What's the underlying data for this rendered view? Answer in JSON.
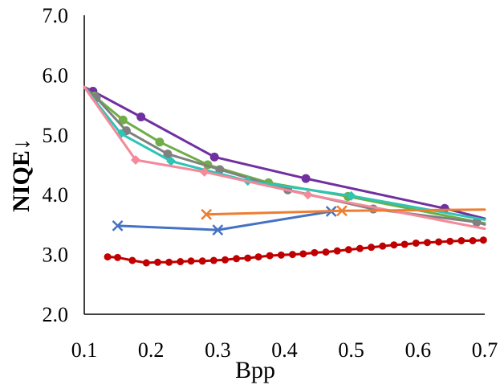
{
  "chart_data": {
    "type": "line",
    "title": "",
    "xlabel": "Bpp",
    "ylabel": "NIQE↓",
    "xlim": [
      0.1,
      0.7
    ],
    "ylim": [
      2.0,
      7.0
    ],
    "x_ticks": [
      "0.1",
      "0.2",
      "0.3",
      "0.4",
      "0.5",
      "0.6",
      "0.7"
    ],
    "y_ticks": [
      "2.0",
      "3.0",
      "4.0",
      "5.0",
      "6.0",
      "7.0"
    ],
    "grid": false,
    "legend": "none",
    "series": [
      {
        "name": "purple",
        "color": "#7030a0",
        "marker": "circle",
        "x": [
          0.1,
          0.113,
          0.185,
          0.295,
          0.432,
          0.64,
          0.7
        ],
        "y": [
          5.8,
          5.73,
          5.3,
          4.63,
          4.27,
          3.77,
          3.6
        ]
      },
      {
        "name": "green",
        "color": "#70ad47",
        "marker": "circle",
        "x": [
          0.1,
          0.115,
          0.158,
          0.213,
          0.285,
          0.376,
          0.495,
          0.7
        ],
        "y": [
          5.8,
          5.65,
          5.25,
          4.88,
          4.5,
          4.2,
          3.97,
          3.52
        ]
      },
      {
        "name": "gray",
        "color": "#808080",
        "marker": "circle",
        "x": [
          0.1,
          0.118,
          0.163,
          0.225,
          0.303,
          0.405,
          0.533,
          0.688,
          0.7
        ],
        "y": [
          5.8,
          5.62,
          5.07,
          4.68,
          4.42,
          4.08,
          3.76,
          3.54,
          3.5
        ]
      },
      {
        "name": "teal",
        "color": "#2ec4b6",
        "marker": "diamond",
        "x": [
          0.1,
          0.155,
          0.23,
          0.345,
          0.5,
          0.7
        ],
        "y": [
          5.8,
          5.02,
          4.56,
          4.23,
          3.98,
          3.58
        ]
      },
      {
        "name": "pink",
        "color": "#f4899a",
        "marker": "diamond",
        "x": [
          0.1,
          0.177,
          0.28,
          0.435,
          0.7
        ],
        "y": [
          5.8,
          4.58,
          4.38,
          4.0,
          3.43
        ]
      },
      {
        "name": "blue",
        "color": "#4472c4",
        "marker": "x",
        "x": [
          0.15,
          0.3,
          0.47
        ],
        "y": [
          3.48,
          3.41,
          3.72
        ]
      },
      {
        "name": "orange",
        "color": "#ed7d31",
        "marker": "x",
        "x": [
          0.283,
          0.486,
          0.7
        ],
        "y": [
          3.67,
          3.73,
          3.75
        ]
      },
      {
        "name": "red",
        "color": "#c00000",
        "marker": "circle-small",
        "x": [
          0.135,
          0.15,
          0.172,
          0.193,
          0.21,
          0.227,
          0.244,
          0.26,
          0.277,
          0.294,
          0.311,
          0.328,
          0.345,
          0.361,
          0.378,
          0.395,
          0.412,
          0.428,
          0.445,
          0.462,
          0.479,
          0.496,
          0.513,
          0.53,
          0.547,
          0.564,
          0.58,
          0.597,
          0.614,
          0.631,
          0.648,
          0.665,
          0.682,
          0.698
        ],
        "y": [
          2.96,
          2.95,
          2.9,
          2.86,
          2.87,
          2.87,
          2.88,
          2.89,
          2.89,
          2.9,
          2.91,
          2.93,
          2.94,
          2.96,
          2.98,
          2.99,
          3.0,
          3.01,
          3.03,
          3.04,
          3.06,
          3.08,
          3.1,
          3.12,
          3.14,
          3.16,
          3.17,
          3.19,
          3.2,
          3.21,
          3.22,
          3.23,
          3.23,
          3.24
        ]
      }
    ]
  }
}
